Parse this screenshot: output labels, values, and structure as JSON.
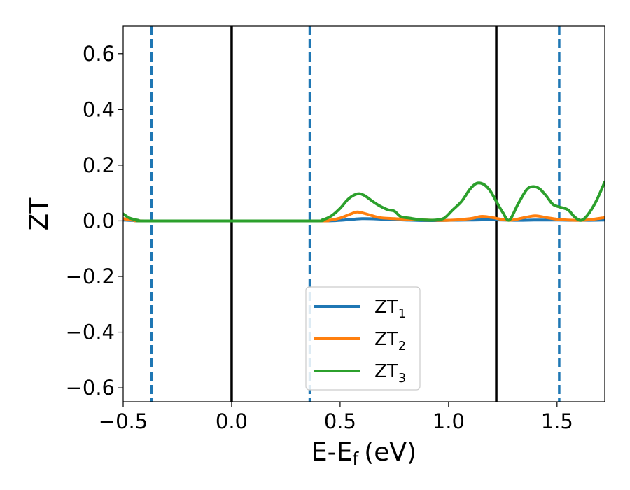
{
  "chart_data": {
    "type": "line",
    "xlabel": "E-E",
    "xlabel_sub": "f",
    "xlabel_unit": "(eV)",
    "ylabel": "ZT",
    "xlim": [
      -0.5,
      1.72
    ],
    "ylim": [
      -0.65,
      0.7
    ],
    "xticks": [
      -0.5,
      0.0,
      0.5,
      1.0,
      1.5
    ],
    "xtick_labels": [
      "−0.5",
      "0.0",
      "0.5",
      "1.0",
      "1.5"
    ],
    "yticks": [
      0.6,
      0.4,
      0.2,
      0.0,
      -0.2,
      -0.4,
      -0.6
    ],
    "ytick_labels": [
      "0.6",
      "0.4",
      "0.2",
      "0.0",
      "−0.2",
      "−0.4",
      "−0.6"
    ],
    "grid": false,
    "legend_position": "bottom-center",
    "vertical_lines": [
      {
        "x": -0.37,
        "style": "dashed",
        "color": "#1f77b4"
      },
      {
        "x": 0.0,
        "style": "solid",
        "color": "#000000"
      },
      {
        "x": 0.36,
        "style": "dashed",
        "color": "#1f77b4"
      },
      {
        "x": 1.22,
        "style": "solid",
        "color": "#000000"
      },
      {
        "x": 1.51,
        "style": "dashed",
        "color": "#1f77b4"
      }
    ],
    "series": [
      {
        "name": "ZT",
        "subscript": "1",
        "color": "#1f77b4",
        "x": [
          -0.5,
          -0.45,
          -0.4,
          0.0,
          0.4,
          0.5,
          0.6,
          0.7,
          0.8,
          0.9,
          1.0,
          1.1,
          1.2,
          1.3,
          1.4,
          1.5,
          1.6,
          1.72
        ],
        "y": [
          0.003,
          0.001,
          0.0,
          0.0,
          0.0,
          0.002,
          0.008,
          0.006,
          0.003,
          0.001,
          0.002,
          0.003,
          0.004,
          0.002,
          0.003,
          0.003,
          0.002,
          0.003
        ]
      },
      {
        "name": "ZT",
        "subscript": "2",
        "color": "#ff7f0e",
        "x": [
          -0.5,
          -0.45,
          -0.4,
          0.0,
          0.4,
          0.45,
          0.5,
          0.55,
          0.58,
          0.62,
          0.68,
          0.75,
          0.8,
          0.9,
          1.0,
          1.1,
          1.15,
          1.2,
          1.28,
          1.35,
          1.4,
          1.45,
          1.5,
          1.55,
          1.6,
          1.65,
          1.72
        ],
        "y": [
          0.008,
          0.002,
          0.0,
          0.0,
          0.0,
          0.002,
          0.01,
          0.025,
          0.032,
          0.025,
          0.012,
          0.008,
          0.006,
          0.003,
          0.002,
          0.008,
          0.016,
          0.012,
          0.002,
          0.012,
          0.018,
          0.012,
          0.006,
          0.003,
          0.002,
          0.004,
          0.012
        ]
      },
      {
        "name": "ZT",
        "subscript": "3",
        "color": "#2ca02c",
        "x": [
          -0.5,
          -0.47,
          -0.43,
          -0.4,
          0.0,
          0.38,
          0.42,
          0.46,
          0.5,
          0.54,
          0.58,
          0.61,
          0.65,
          0.68,
          0.72,
          0.75,
          0.78,
          0.82,
          0.86,
          0.9,
          0.94,
          0.98,
          1.02,
          1.06,
          1.1,
          1.13,
          1.16,
          1.19,
          1.22,
          1.25,
          1.28,
          1.32,
          1.36,
          1.39,
          1.42,
          1.45,
          1.48,
          1.51,
          1.55,
          1.58,
          1.61,
          1.64,
          1.68,
          1.72
        ],
        "y": [
          0.025,
          0.01,
          0.002,
          0.0,
          0.0,
          0.0,
          0.004,
          0.018,
          0.045,
          0.08,
          0.097,
          0.092,
          0.07,
          0.055,
          0.04,
          0.035,
          0.015,
          0.01,
          0.005,
          0.003,
          0.003,
          0.01,
          0.04,
          0.07,
          0.115,
          0.135,
          0.132,
          0.11,
          0.07,
          0.03,
          0.003,
          0.06,
          0.112,
          0.123,
          0.115,
          0.09,
          0.06,
          0.05,
          0.04,
          0.015,
          0.002,
          0.02,
          0.07,
          0.14
        ]
      }
    ]
  }
}
